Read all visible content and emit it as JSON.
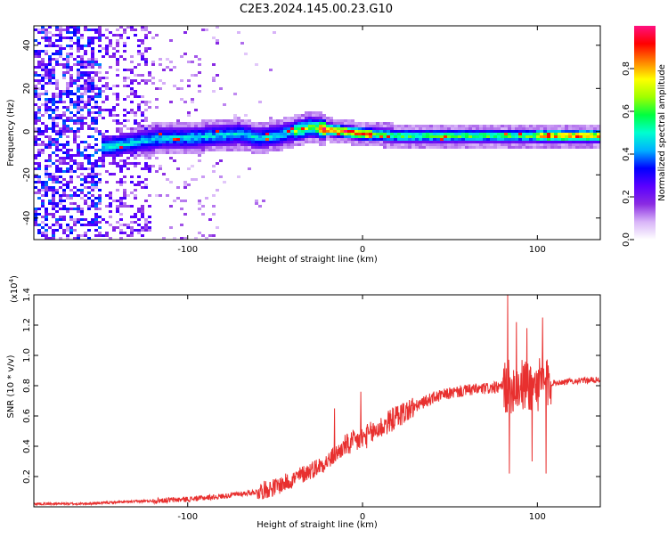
{
  "title": "C2E3.2024.145.00.23.G10",
  "chart_data": [
    {
      "type": "heatmap",
      "xlabel": "Height of straight line (km)",
      "ylabel": "Frequency (Hz)",
      "xlim": [
        -188,
        136
      ],
      "ylim": [
        -50,
        49
      ],
      "xticks": [
        -100,
        0,
        100
      ],
      "yticks": [
        -40,
        -20,
        0,
        20,
        40
      ],
      "colorbar": {
        "label": "Normalized spectral amplitude",
        "range": [
          0,
          1
        ],
        "ticks": [
          "0.0",
          "0.2",
          "0.4",
          "0.6",
          "0.8"
        ],
        "tick_values": [
          0,
          0.2,
          0.4,
          0.6,
          0.8
        ],
        "colors": [
          "#ffffff",
          "#d8b4f8",
          "#8a2be2",
          "#5a00ff",
          "#0000ff",
          "#00b0ff",
          "#00ffd0",
          "#00ff40",
          "#a0ff00",
          "#ffff00",
          "#ff8000",
          "#ff0000",
          "#ff1080"
        ]
      },
      "ridge": {
        "x": [
          -145,
          -130,
          -115,
          -100,
          -85,
          -70,
          -60,
          -50,
          -40,
          -30,
          -20,
          -10,
          0,
          20,
          40,
          60,
          80,
          100,
          120,
          136
        ],
        "freq_hz": [
          -7,
          -5,
          -3,
          -3,
          -2,
          -1,
          -3,
          -2,
          0,
          2,
          1,
          0,
          -1,
          -2,
          -2,
          -2,
          -2,
          -2,
          -2,
          -2
        ]
      }
    },
    {
      "type": "line",
      "xlabel": "Height of straight line (km)",
      "ylabel": "SNR (10 * v/v)",
      "y_multiplier": "(x10",
      "y_multiplier_exp": "4",
      "y_multiplier_close": ")",
      "xlim": [
        -188,
        136
      ],
      "ylim": [
        0,
        1.4
      ],
      "xticks": [
        -100,
        0,
        100
      ],
      "yticks": [
        0.2,
        0.4,
        0.6,
        0.8,
        1.0,
        1.2,
        1.4
      ],
      "ytick_labels": [
        "0.2",
        "0.4",
        "0.6",
        "0.8",
        "1.0",
        "1.2",
        "1.4"
      ],
      "color": "#e8302f",
      "series": [
        {
          "x": [
            -188,
            -160,
            -140,
            -120,
            -100,
            -80,
            -60,
            -50,
            -40,
            -30,
            -25,
            -20,
            -15,
            -10,
            0,
            10,
            20,
            30,
            40,
            50,
            60,
            70,
            80,
            90,
            100,
            110,
            120,
            136
          ],
          "values": [
            0.02,
            0.02,
            0.03,
            0.04,
            0.05,
            0.07,
            0.1,
            0.13,
            0.18,
            0.24,
            0.27,
            0.3,
            0.35,
            0.4,
            0.45,
            0.52,
            0.6,
            0.66,
            0.72,
            0.75,
            0.77,
            0.78,
            0.79,
            0.8,
            0.8,
            0.82,
            0.83,
            0.84
          ]
        }
      ],
      "spikes": [
        {
          "x": -16,
          "y": 0.65
        },
        {
          "x": -1,
          "y": 0.76
        },
        {
          "x": 83,
          "y": 1.4
        },
        {
          "x": 84,
          "y": 0.22
        },
        {
          "x": 88,
          "y": 1.22
        },
        {
          "x": 94,
          "y": 1.18
        },
        {
          "x": 97,
          "y": 0.3
        },
        {
          "x": 103,
          "y": 1.25
        },
        {
          "x": 105,
          "y": 0.22
        }
      ]
    }
  ]
}
